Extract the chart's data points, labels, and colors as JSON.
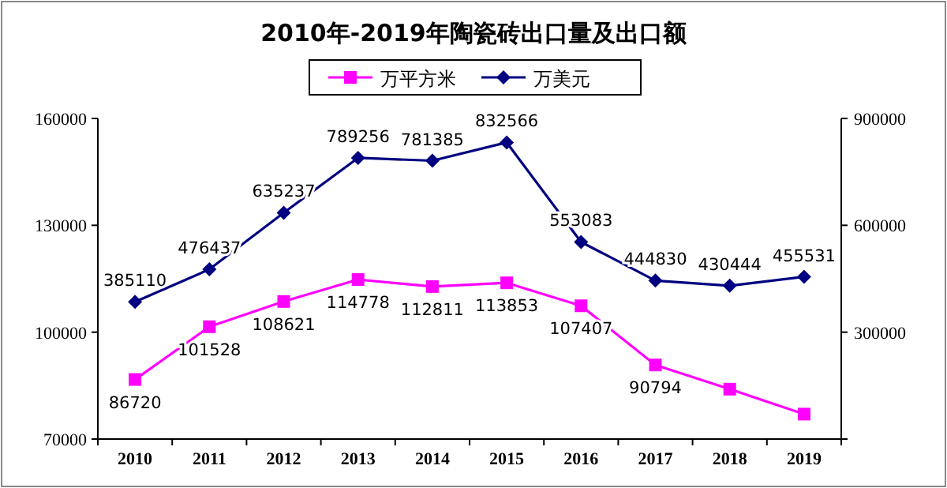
{
  "chart_data": {
    "type": "line",
    "title": "2010年-2019年陶瓷砖出口量及出口额",
    "categories": [
      "2010",
      "2011",
      "2012",
      "2013",
      "2014",
      "2015",
      "2016",
      "2017",
      "2018",
      "2019"
    ],
    "series": [
      {
        "name": "万平方米",
        "color": "#ff00ff",
        "marker": "square",
        "values": [
          86720,
          101528,
          108621,
          114778,
          112811,
          113853,
          107407,
          90794,
          84000,
          77000
        ],
        "value_labels": [
          "86720",
          "101528",
          "108621",
          "114778",
          "112811",
          "113853",
          "107407",
          "90794",
          null,
          null
        ]
      },
      {
        "name": "万美元",
        "color": "#000080",
        "marker": "diamond",
        "axis": "y2",
        "values": [
          385110,
          476437,
          635237,
          789256,
          781385,
          832566,
          553083,
          444830,
          430444,
          455531
        ],
        "value_labels": [
          "385110",
          "476437",
          "635237",
          "789256",
          "781385",
          "832566",
          "553083",
          "444830",
          "430444",
          "455531"
        ]
      }
    ],
    "ylim": [
      70000,
      160000
    ],
    "yticks": [
      70000,
      100000,
      130000,
      160000
    ],
    "y2lim": [
      0,
      900000
    ],
    "y2ticks": [
      {
        "value": 0,
        "label": null
      },
      300000,
      600000,
      900000
    ],
    "legend": "top",
    "grid": false
  }
}
